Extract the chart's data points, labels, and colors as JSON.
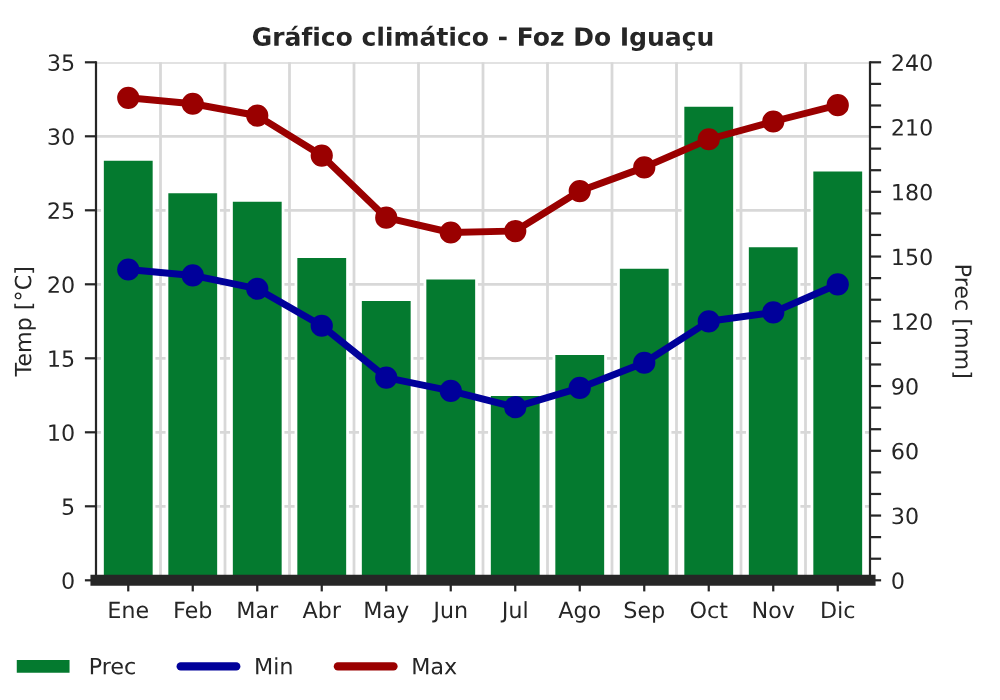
{
  "chart_data": {
    "type": "bar",
    "title": "Gráfico climático - Foz Do Iguaçu",
    "categories": [
      "Ene",
      "Feb",
      "Mar",
      "Abr",
      "May",
      "Jun",
      "Jul",
      "Ago",
      "Sep",
      "Oct",
      "Nov",
      "Dic"
    ],
    "ylabel": "Temp [°C]",
    "y2label": "Prec [mm]",
    "ylim": [
      0,
      35
    ],
    "yticks": [
      0,
      5,
      10,
      15,
      20,
      25,
      30,
      35
    ],
    "y2lim": [
      0,
      240
    ],
    "y2ticks": [
      0,
      {
        "value": 10,
        "label": null
      },
      {
        "value": 20,
        "label": null
      },
      30,
      {
        "value": 40,
        "label": null
      },
      {
        "value": 50,
        "label": null
      },
      60,
      {
        "value": 70,
        "label": null
      },
      {
        "value": 80,
        "label": null
      },
      90,
      {
        "value": 100,
        "label": null
      },
      {
        "value": 110,
        "label": null
      },
      120,
      {
        "value": 130,
        "label": null
      },
      {
        "value": 140,
        "label": null
      },
      150,
      {
        "value": 160,
        "label": null
      },
      {
        "value": 170,
        "label": null
      },
      180,
      {
        "value": 190,
        "label": null
      },
      {
        "value": 200,
        "label": null
      },
      210,
      {
        "value": 220,
        "label": null
      },
      {
        "value": 230,
        "label": null
      },
      240
    ],
    "grid": true,
    "legend": "bottom",
    "marker": "circle",
    "series": [
      {
        "name": "Prec",
        "axis": "y2",
        "color": "#047a2f",
        "values": [
          195,
          180,
          176,
          150,
          130,
          140,
          86,
          105,
          145,
          220,
          155,
          190
        ]
      },
      {
        "name": "Min",
        "type": "line",
        "color": "#00009a",
        "values": [
          21.0,
          20.6,
          19.7,
          17.2,
          13.7,
          12.8,
          11.7,
          13.0,
          14.7,
          17.5,
          18.1,
          20.0
        ]
      },
      {
        "name": "Max",
        "type": "line",
        "color": "#9a0000",
        "values": [
          32.6,
          32.2,
          31.4,
          28.7,
          24.5,
          23.5,
          23.6,
          26.3,
          27.9,
          29.8,
          31.0,
          32.1
        ]
      }
    ]
  }
}
